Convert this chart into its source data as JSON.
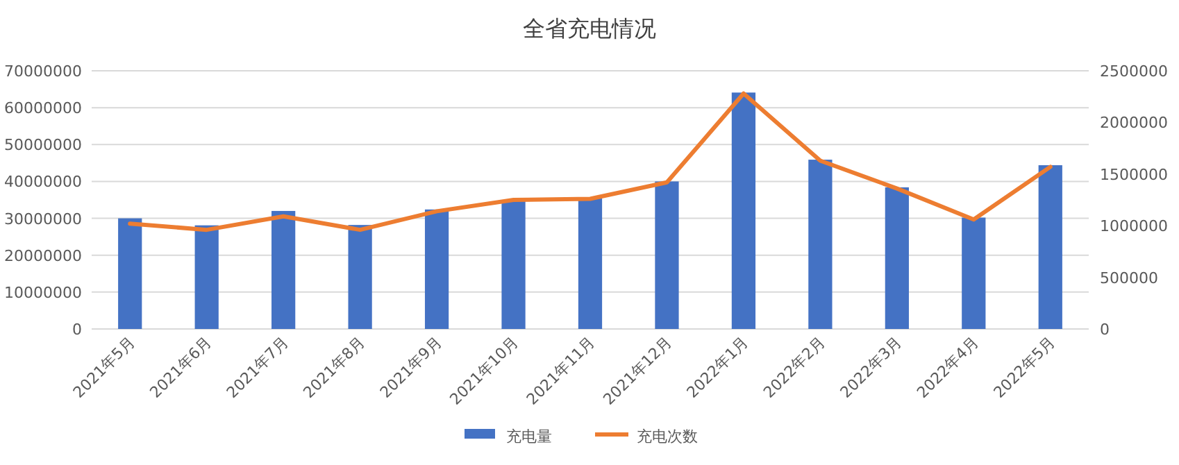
{
  "chart_data": {
    "type": "bar",
    "title": "全省充电情况",
    "categories": [
      "2021年5月",
      "2021年6月",
      "2021年7月",
      "2021年8月",
      "2021年9月",
      "2021年10月",
      "2021年11月",
      "2021年12月",
      "2022年1月",
      "2022年2月",
      "2022年3月",
      "2022年4月",
      "2022年5月"
    ],
    "series": [
      {
        "name": "充电量",
        "color": "#4472c4",
        "values": [
          30000000,
          28100000,
          32000000,
          28200000,
          32400000,
          34900000,
          35400000,
          40000000,
          64100000,
          45900000,
          38400000,
          30200000,
          44400000
        ]
      },
      {
        "name": "充电次数",
        "type": "line",
        "axis": "y2",
        "color": "#ed7d31",
        "values": [
          1020000,
          960000,
          1090000,
          960000,
          1140000,
          1250000,
          1260000,
          1420000,
          2280000,
          1630000,
          1360000,
          1060000,
          1570000
        ]
      }
    ],
    "ylim": [
      0,
      70000000
    ],
    "yticks": [
      0,
      10000000,
      20000000,
      30000000,
      40000000,
      50000000,
      60000000,
      70000000
    ],
    "y2lim": [
      0,
      2500000
    ],
    "y2ticks": [
      0,
      500000,
      1000000,
      1500000,
      2000000,
      2500000
    ],
    "grid": "y",
    "legend": "bottom",
    "marker": "none",
    "line_style": "solid"
  }
}
